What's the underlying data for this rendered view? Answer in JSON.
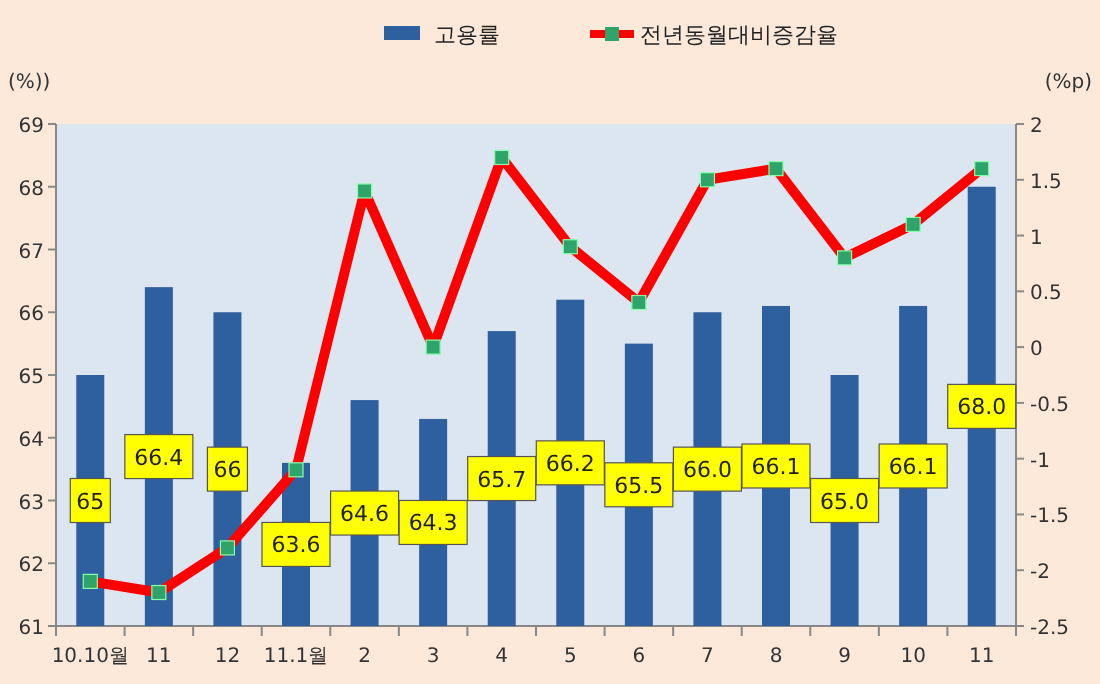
{
  "chart_data": {
    "type": "bar",
    "categories": [
      "10.10월",
      "11",
      "12",
      "11.1월",
      "2",
      "3",
      "4",
      "5",
      "6",
      "7",
      "8",
      "9",
      "10",
      "11"
    ],
    "ylabel": "(%))",
    "y2label": "(%p)",
    "ylim": [
      61,
      69
    ],
    "yticks": [
      61,
      62,
      63,
      64,
      65,
      66,
      67,
      68,
      69
    ],
    "y2lim": [
      -2.5,
      2
    ],
    "y2ticks": [
      -2.5,
      -2,
      -1.5,
      -1,
      -0.5,
      0,
      0.5,
      1,
      1.5,
      2
    ],
    "series": [
      {
        "name": "고용률",
        "color": "#2e5f9e",
        "values": [
          65,
          66.4,
          66,
          63.6,
          64.6,
          64.3,
          65.7,
          66.2,
          65.5,
          66.0,
          66.1,
          65.0,
          66.1,
          68.0
        ],
        "value_labels": [
          "65",
          "66.4",
          "66",
          "63.6",
          "64.6",
          "64.3",
          "65.7",
          "66.2",
          "65.5",
          "66.0",
          "66.1",
          "65.0",
          "66.1",
          "68.0"
        ]
      },
      {
        "name": "전년동월대비증감율",
        "type": "line",
        "axis": "y2",
        "color": "#ff0000",
        "marker": "square",
        "values": [
          -2.1,
          -2.2,
          -1.8,
          -1.1,
          1.4,
          0.0,
          1.7,
          0.9,
          0.4,
          1.5,
          1.6,
          0.8,
          1.1,
          1.6
        ]
      }
    ],
    "legend": "top",
    "grid": false
  }
}
